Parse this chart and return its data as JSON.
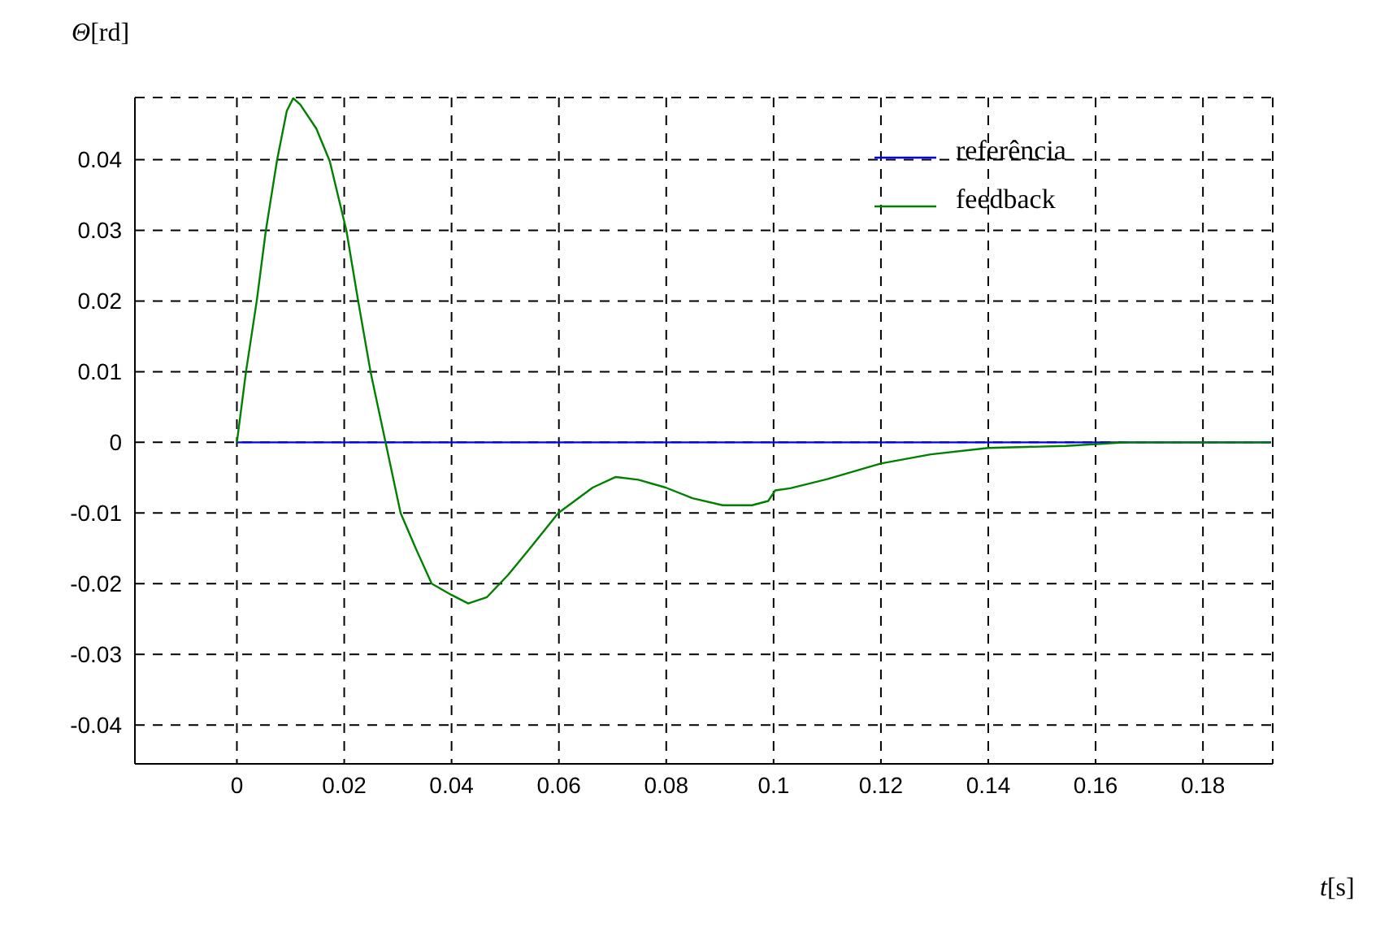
{
  "chart_data": {
    "type": "line",
    "xlabel": "t[s]",
    "ylabel": "Θ[rd]",
    "xlim": [
      -0.019,
      0.193
    ],
    "ylim": [
      -0.0455,
      0.0488
    ],
    "xticks": [
      0,
      0.02,
      0.04,
      0.06,
      0.08,
      0.1,
      0.12,
      0.14,
      0.16,
      0.18
    ],
    "yticks": [
      -0.04,
      -0.03,
      -0.02,
      -0.01,
      0,
      0.01,
      0.02,
      0.03,
      0.04
    ],
    "grid": true,
    "legend": "top right",
    "line_style": "solid",
    "marker": "none",
    "series": [
      {
        "name": "referência",
        "color": "#0000ff",
        "x": [
          0,
          0.1926
        ],
        "values": [
          0,
          0
        ]
      },
      {
        "name": "feedback",
        "color": "#008000",
        "x": [
          0,
          0.0017,
          0.0037,
          0.0054,
          0.0075,
          0.0093,
          0.0105,
          0.0118,
          0.0148,
          0.0173,
          0.0204,
          0.0226,
          0.0249,
          0.0277,
          0.0305,
          0.0335,
          0.0363,
          0.04,
          0.0431,
          0.0466,
          0.0506,
          0.0547,
          0.0599,
          0.0663,
          0.0706,
          0.0748,
          0.0799,
          0.0849,
          0.0905,
          0.096,
          0.099,
          0.1003,
          0.1031,
          0.11,
          0.12,
          0.1293,
          0.14,
          0.1545,
          0.1656,
          0.1926
        ],
        "values": [
          0,
          0.01,
          0.02,
          0.03,
          0.04,
          0.0469,
          0.0487,
          0.0478,
          0.0444,
          0.0398,
          0.03,
          0.02,
          0.01,
          0,
          -0.01,
          -0.0153,
          -0.02,
          -0.0216,
          -0.0228,
          -0.0219,
          -0.0187,
          -0.0149,
          -0.01,
          -0.0064,
          -0.0049,
          -0.0053,
          -0.0064,
          -0.0079,
          -0.0089,
          -0.0089,
          -0.0083,
          -0.0068,
          -0.0065,
          -0.0052,
          -0.003,
          -0.0017,
          -0.0008,
          -0.0005,
          0,
          0
        ]
      }
    ]
  }
}
